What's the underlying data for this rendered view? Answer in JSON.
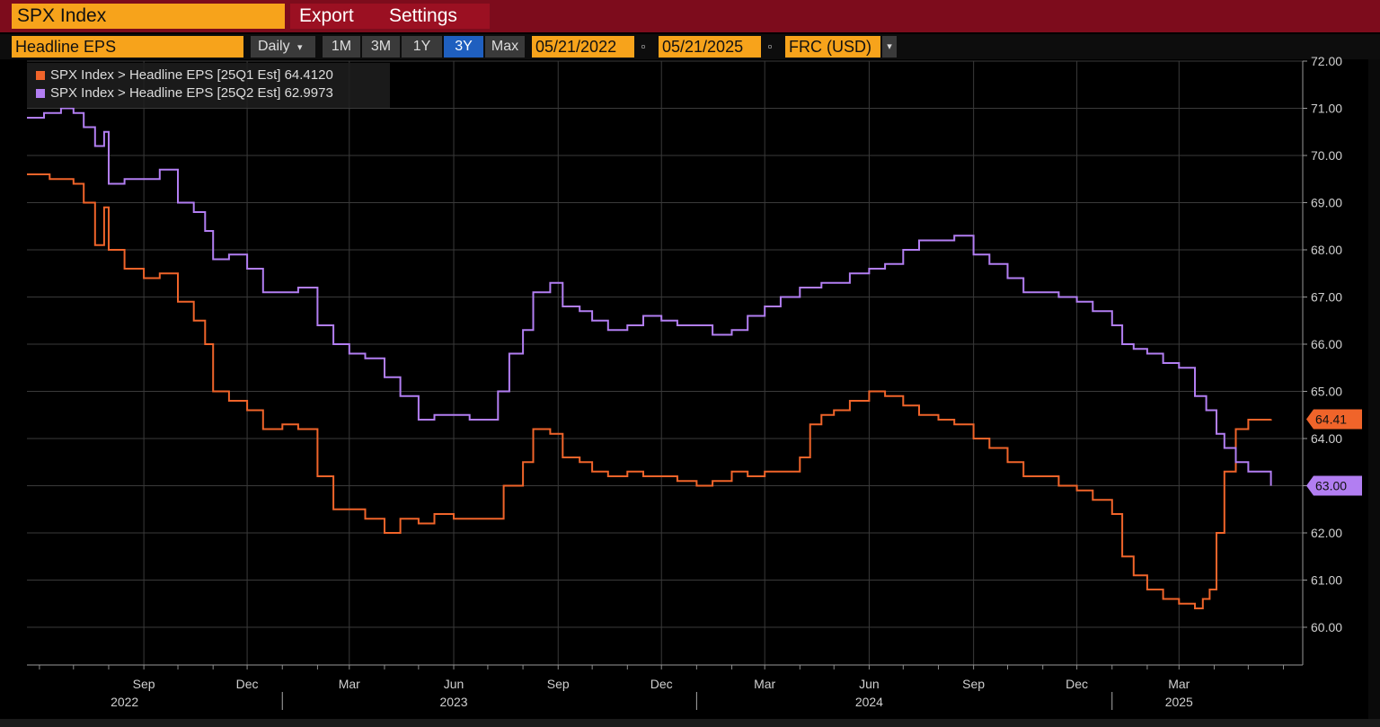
{
  "header": {
    "ticker": "SPX Index",
    "menu": [
      "Export",
      "Settings"
    ]
  },
  "toolbar": {
    "field": "Headline EPS",
    "frequency": "Daily",
    "frequency_arrow": "▾",
    "ranges": [
      "1M",
      "3M",
      "1Y",
      "3Y",
      "Max"
    ],
    "active_range": "3Y",
    "start_date": "05/21/2022",
    "end_date": "05/21/2025",
    "currency": "FRC (USD)",
    "currency_arrow": "▾",
    "calendar_glyph": "▫"
  },
  "legend": [
    {
      "label": "SPX Index > Headline EPS [25Q1 Est]  64.4120",
      "color": "#f0642a"
    },
    {
      "label": "SPX Index > Headline EPS [25Q2 Est]  62.9973",
      "color": "#b27ef2"
    }
  ],
  "chart_data": {
    "type": "line",
    "ylim": [
      59.2,
      72.0
    ],
    "y_ticks": [
      60,
      61,
      62,
      63,
      64,
      65,
      66,
      67,
      68,
      69,
      70,
      71,
      72
    ],
    "y_tick_labels": [
      "60.00",
      "61.00",
      "62.00",
      "63.00",
      "64.00",
      "65.00",
      "66.00",
      "67.00",
      "68.00",
      "69.00",
      "70.00",
      "71.00",
      "72.00"
    ],
    "x_range": [
      "2022-05-21",
      "2025-06-18"
    ],
    "x_ticks": [
      {
        "date": "2022-09-01",
        "label": "Sep"
      },
      {
        "date": "2022-12-01",
        "label": "Dec"
      },
      {
        "date": "2023-03-01",
        "label": "Mar"
      },
      {
        "date": "2023-06-01",
        "label": "Jun"
      },
      {
        "date": "2023-09-01",
        "label": "Sep"
      },
      {
        "date": "2023-12-01",
        "label": "Dec"
      },
      {
        "date": "2024-03-01",
        "label": "Mar"
      },
      {
        "date": "2024-06-01",
        "label": "Jun"
      },
      {
        "date": "2024-09-01",
        "label": "Sep"
      },
      {
        "date": "2024-12-01",
        "label": "Dec"
      },
      {
        "date": "2025-03-01",
        "label": "Mar"
      }
    ],
    "year_labels": [
      {
        "date": "2022-08-15",
        "label": "2022"
      },
      {
        "date": "2023-06-01",
        "label": "2023"
      },
      {
        "date": "2024-06-01",
        "label": "2024"
      },
      {
        "date": "2025-03-01",
        "label": "2025"
      }
    ],
    "year_separators": [
      "2023-01-01",
      "2024-01-01",
      "2025-01-01"
    ],
    "grid": true,
    "series": [
      {
        "name": "SPX Index > Headline EPS [25Q1 Est]",
        "color": "#f0642a",
        "last_label": "64.41",
        "last_value": 64.41,
        "points": [
          [
            "2022-05-21",
            69.6
          ],
          [
            "2022-06-10",
            69.5
          ],
          [
            "2022-07-01",
            69.4
          ],
          [
            "2022-07-10",
            69.0
          ],
          [
            "2022-07-20",
            68.1
          ],
          [
            "2022-07-28",
            68.9
          ],
          [
            "2022-08-01",
            68.0
          ],
          [
            "2022-08-15",
            67.6
          ],
          [
            "2022-09-01",
            67.4
          ],
          [
            "2022-09-15",
            67.5
          ],
          [
            "2022-10-01",
            66.9
          ],
          [
            "2022-10-15",
            66.5
          ],
          [
            "2022-10-25",
            66.0
          ],
          [
            "2022-11-01",
            65.0
          ],
          [
            "2022-11-15",
            64.8
          ],
          [
            "2022-12-01",
            64.6
          ],
          [
            "2022-12-15",
            64.2
          ],
          [
            "2023-01-01",
            64.3
          ],
          [
            "2023-01-15",
            64.2
          ],
          [
            "2023-02-01",
            63.2
          ],
          [
            "2023-02-15",
            62.5
          ],
          [
            "2023-03-01",
            62.5
          ],
          [
            "2023-03-15",
            62.3
          ],
          [
            "2023-04-01",
            62.0
          ],
          [
            "2023-04-15",
            62.3
          ],
          [
            "2023-05-01",
            62.2
          ],
          [
            "2023-05-15",
            62.4
          ],
          [
            "2023-06-01",
            62.3
          ],
          [
            "2023-06-15",
            62.3
          ],
          [
            "2023-07-01",
            62.3
          ],
          [
            "2023-07-15",
            63.0
          ],
          [
            "2023-08-01",
            63.5
          ],
          [
            "2023-08-10",
            64.2
          ],
          [
            "2023-08-25",
            64.1
          ],
          [
            "2023-09-05",
            63.6
          ],
          [
            "2023-09-20",
            63.5
          ],
          [
            "2023-10-01",
            63.3
          ],
          [
            "2023-10-15",
            63.2
          ],
          [
            "2023-11-01",
            63.3
          ],
          [
            "2023-11-15",
            63.2
          ],
          [
            "2023-12-01",
            63.2
          ],
          [
            "2023-12-15",
            63.1
          ],
          [
            "2024-01-01",
            63.0
          ],
          [
            "2024-01-15",
            63.1
          ],
          [
            "2024-02-01",
            63.3
          ],
          [
            "2024-02-15",
            63.2
          ],
          [
            "2024-03-01",
            63.3
          ],
          [
            "2024-03-15",
            63.3
          ],
          [
            "2024-04-01",
            63.6
          ],
          [
            "2024-04-10",
            64.3
          ],
          [
            "2024-04-20",
            64.5
          ],
          [
            "2024-05-01",
            64.6
          ],
          [
            "2024-05-15",
            64.8
          ],
          [
            "2024-06-01",
            65.0
          ],
          [
            "2024-06-15",
            64.9
          ],
          [
            "2024-07-01",
            64.7
          ],
          [
            "2024-07-15",
            64.5
          ],
          [
            "2024-08-01",
            64.4
          ],
          [
            "2024-08-15",
            64.3
          ],
          [
            "2024-09-01",
            64.0
          ],
          [
            "2024-09-15",
            63.8
          ],
          [
            "2024-10-01",
            63.5
          ],
          [
            "2024-10-15",
            63.2
          ],
          [
            "2024-11-01",
            63.2
          ],
          [
            "2024-11-15",
            63.0
          ],
          [
            "2024-12-01",
            62.9
          ],
          [
            "2024-12-15",
            62.7
          ],
          [
            "2025-01-01",
            62.4
          ],
          [
            "2025-01-10",
            61.5
          ],
          [
            "2025-01-20",
            61.1
          ],
          [
            "2025-02-01",
            60.8
          ],
          [
            "2025-02-15",
            60.6
          ],
          [
            "2025-03-01",
            60.5
          ],
          [
            "2025-03-15",
            60.4
          ],
          [
            "2025-03-22",
            60.6
          ],
          [
            "2025-03-28",
            60.8
          ],
          [
            "2025-04-03",
            62.0
          ],
          [
            "2025-04-10",
            63.3
          ],
          [
            "2025-04-20",
            64.2
          ],
          [
            "2025-05-01",
            64.4
          ],
          [
            "2025-05-21",
            64.41
          ]
        ]
      },
      {
        "name": "SPX Index > Headline EPS [25Q2 Est]",
        "color": "#b27ef2",
        "last_label": "63.00",
        "last_value": 63.0,
        "points": [
          [
            "2022-05-21",
            70.8
          ],
          [
            "2022-06-05",
            70.9
          ],
          [
            "2022-06-20",
            71.0
          ],
          [
            "2022-07-01",
            70.9
          ],
          [
            "2022-07-10",
            70.6
          ],
          [
            "2022-07-20",
            70.2
          ],
          [
            "2022-07-28",
            70.5
          ],
          [
            "2022-08-01",
            69.4
          ],
          [
            "2022-08-15",
            69.5
          ],
          [
            "2022-09-01",
            69.5
          ],
          [
            "2022-09-15",
            69.7
          ],
          [
            "2022-10-01",
            69.0
          ],
          [
            "2022-10-15",
            68.8
          ],
          [
            "2022-10-25",
            68.4
          ],
          [
            "2022-11-01",
            67.8
          ],
          [
            "2022-11-15",
            67.9
          ],
          [
            "2022-12-01",
            67.6
          ],
          [
            "2022-12-15",
            67.1
          ],
          [
            "2023-01-01",
            67.1
          ],
          [
            "2023-01-15",
            67.2
          ],
          [
            "2023-02-01",
            66.4
          ],
          [
            "2023-02-15",
            66.0
          ],
          [
            "2023-03-01",
            65.8
          ],
          [
            "2023-03-15",
            65.7
          ],
          [
            "2023-04-01",
            65.3
          ],
          [
            "2023-04-15",
            64.9
          ],
          [
            "2023-05-01",
            64.4
          ],
          [
            "2023-05-15",
            64.5
          ],
          [
            "2023-06-01",
            64.5
          ],
          [
            "2023-06-15",
            64.4
          ],
          [
            "2023-07-01",
            64.4
          ],
          [
            "2023-07-10",
            65.0
          ],
          [
            "2023-07-20",
            65.8
          ],
          [
            "2023-08-01",
            66.3
          ],
          [
            "2023-08-10",
            67.1
          ],
          [
            "2023-08-25",
            67.3
          ],
          [
            "2023-09-05",
            66.8
          ],
          [
            "2023-09-20",
            66.7
          ],
          [
            "2023-10-01",
            66.5
          ],
          [
            "2023-10-15",
            66.3
          ],
          [
            "2023-11-01",
            66.4
          ],
          [
            "2023-11-15",
            66.6
          ],
          [
            "2023-12-01",
            66.5
          ],
          [
            "2023-12-15",
            66.4
          ],
          [
            "2024-01-01",
            66.4
          ],
          [
            "2024-01-15",
            66.2
          ],
          [
            "2024-02-01",
            66.3
          ],
          [
            "2024-02-15",
            66.6
          ],
          [
            "2024-03-01",
            66.8
          ],
          [
            "2024-03-15",
            67.0
          ],
          [
            "2024-04-01",
            67.2
          ],
          [
            "2024-04-10",
            67.2
          ],
          [
            "2024-04-20",
            67.3
          ],
          [
            "2024-05-01",
            67.3
          ],
          [
            "2024-05-15",
            67.5
          ],
          [
            "2024-06-01",
            67.6
          ],
          [
            "2024-06-15",
            67.7
          ],
          [
            "2024-07-01",
            68.0
          ],
          [
            "2024-07-15",
            68.2
          ],
          [
            "2024-08-01",
            68.2
          ],
          [
            "2024-08-15",
            68.3
          ],
          [
            "2024-09-01",
            67.9
          ],
          [
            "2024-09-15",
            67.7
          ],
          [
            "2024-10-01",
            67.4
          ],
          [
            "2024-10-15",
            67.1
          ],
          [
            "2024-11-01",
            67.1
          ],
          [
            "2024-11-15",
            67.0
          ],
          [
            "2024-12-01",
            66.9
          ],
          [
            "2024-12-15",
            66.7
          ],
          [
            "2025-01-01",
            66.4
          ],
          [
            "2025-01-10",
            66.0
          ],
          [
            "2025-01-20",
            65.9
          ],
          [
            "2025-02-01",
            65.8
          ],
          [
            "2025-02-15",
            65.6
          ],
          [
            "2025-03-01",
            65.5
          ],
          [
            "2025-03-15",
            64.9
          ],
          [
            "2025-03-25",
            64.6
          ],
          [
            "2025-04-03",
            64.1
          ],
          [
            "2025-04-10",
            63.8
          ],
          [
            "2025-04-20",
            63.5
          ],
          [
            "2025-05-01",
            63.3
          ],
          [
            "2025-05-21",
            63.0
          ]
        ]
      }
    ]
  }
}
